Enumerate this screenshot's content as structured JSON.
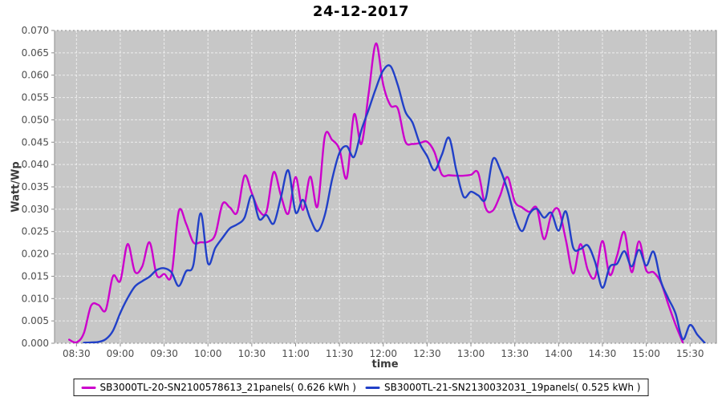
{
  "chart_data": {
    "type": "line",
    "title": "24-12-2017",
    "xlabel": "time",
    "ylabel": "Watt/Wp",
    "xlim": [
      "08:15",
      "15:48"
    ],
    "ylim": [
      0,
      0.07
    ],
    "xticks": [
      "08:30",
      "09:00",
      "09:30",
      "10:00",
      "10:30",
      "11:00",
      "11:30",
      "12:00",
      "12:30",
      "13:00",
      "13:30",
      "14:00",
      "14:30",
      "15:00",
      "15:30"
    ],
    "yticks": [
      "0.000",
      "0.005",
      "0.010",
      "0.015",
      "0.020",
      "0.025",
      "0.030",
      "0.035",
      "0.040",
      "0.045",
      "0.050",
      "0.055",
      "0.060",
      "0.065",
      "0.070"
    ],
    "grid": true,
    "legend_position": "bottom",
    "plot_background": "#c7c7c7",
    "gridline_color": "#f2f2f2",
    "axis_color": "#8c8c8c",
    "tick_label_color": "#4d4d4d",
    "x": [
      "08:20",
      "08:25",
      "08:30",
      "08:35",
      "08:40",
      "08:45",
      "08:50",
      "08:55",
      "09:00",
      "09:05",
      "09:10",
      "09:15",
      "09:20",
      "09:25",
      "09:30",
      "09:35",
      "09:40",
      "09:45",
      "09:50",
      "09:55",
      "10:00",
      "10:05",
      "10:10",
      "10:15",
      "10:20",
      "10:25",
      "10:30",
      "10:35",
      "10:40",
      "10:45",
      "10:50",
      "10:55",
      "11:00",
      "11:05",
      "11:10",
      "11:15",
      "11:20",
      "11:25",
      "11:30",
      "11:35",
      "11:40",
      "11:45",
      "11:50",
      "11:55",
      "12:00",
      "12:05",
      "12:10",
      "12:15",
      "12:20",
      "12:25",
      "12:30",
      "12:35",
      "12:40",
      "12:45",
      "12:50",
      "12:55",
      "13:00",
      "13:05",
      "13:10",
      "13:15",
      "13:20",
      "13:25",
      "13:30",
      "13:35",
      "13:40",
      "13:45",
      "13:50",
      "13:55",
      "14:00",
      "14:05",
      "14:10",
      "14:15",
      "14:20",
      "14:25",
      "14:30",
      "14:35",
      "14:40",
      "14:45",
      "14:50",
      "14:55",
      "15:00",
      "15:05",
      "15:10",
      "15:15",
      "15:20",
      "15:25",
      "15:30",
      "15:35",
      "15:40"
    ],
    "series": [
      {
        "name": "SB3000TL-20-SN2100578613_21panels( 0.626 kWh )",
        "color": "#cc00cc",
        "values": [
          null,
          0.0008,
          0.0002,
          0.0022,
          0.0084,
          0.0086,
          0.0074,
          0.015,
          0.014,
          0.0222,
          0.016,
          0.0172,
          0.0226,
          0.0152,
          0.0155,
          0.0152,
          0.0295,
          0.0268,
          0.0226,
          0.0226,
          0.0227,
          0.0243,
          0.0312,
          0.0304,
          0.0293,
          0.0375,
          0.0336,
          0.0297,
          0.0294,
          0.0383,
          0.033,
          0.029,
          0.0372,
          0.0298,
          0.0373,
          0.0306,
          0.0463,
          0.0455,
          0.0434,
          0.037,
          0.0512,
          0.0446,
          0.056,
          0.0671,
          0.0578,
          0.0532,
          0.0525,
          0.0452,
          0.0446,
          0.0448,
          0.0451,
          0.0428,
          0.0378,
          0.0376,
          0.0375,
          0.0375,
          0.0377,
          0.0381,
          0.0303,
          0.0297,
          0.0331,
          0.0372,
          0.0317,
          0.0304,
          0.0294,
          0.0303,
          0.0233,
          0.0287,
          0.0299,
          0.0231,
          0.0156,
          0.0222,
          0.0164,
          0.0148,
          0.0229,
          0.0153,
          0.0196,
          0.0249,
          0.0159,
          0.0228,
          0.0163,
          0.0159,
          0.0136,
          0.0088,
          0.0042,
          0.0002,
          null,
          null,
          null
        ]
      },
      {
        "name": "SB3000TL-21-SN2130032031_19panels( 0.525 kWh )",
        "color": "#2140c8",
        "values": [
          null,
          null,
          null,
          0.0001,
          0.0002,
          0.0003,
          0.0009,
          0.0028,
          0.0068,
          0.0101,
          0.0127,
          0.0139,
          0.0149,
          0.0164,
          0.0168,
          0.0159,
          0.0128,
          0.0161,
          0.0175,
          0.0291,
          0.0179,
          0.0213,
          0.0236,
          0.0257,
          0.0266,
          0.0281,
          0.0331,
          0.0278,
          0.0287,
          0.0268,
          0.0327,
          0.0387,
          0.0293,
          0.0321,
          0.0279,
          0.0251,
          0.0287,
          0.0367,
          0.0426,
          0.0441,
          0.0417,
          0.0477,
          0.0523,
          0.0571,
          0.0611,
          0.062,
          0.0577,
          0.0519,
          0.0494,
          0.0447,
          0.0419,
          0.0387,
          0.0421,
          0.046,
          0.0387,
          0.0328,
          0.0339,
          0.0331,
          0.0323,
          0.0412,
          0.0389,
          0.0343,
          0.0284,
          0.0251,
          0.0289,
          0.0301,
          0.0281,
          0.0292,
          0.0252,
          0.0295,
          0.0214,
          0.0211,
          0.0219,
          0.0182,
          0.0124,
          0.0171,
          0.0178,
          0.0206,
          0.0172,
          0.0209,
          0.0174,
          0.0205,
          0.0139,
          0.0101,
          0.0067,
          0.0009,
          0.0041,
          0.0019,
          0.0001
        ]
      }
    ]
  }
}
